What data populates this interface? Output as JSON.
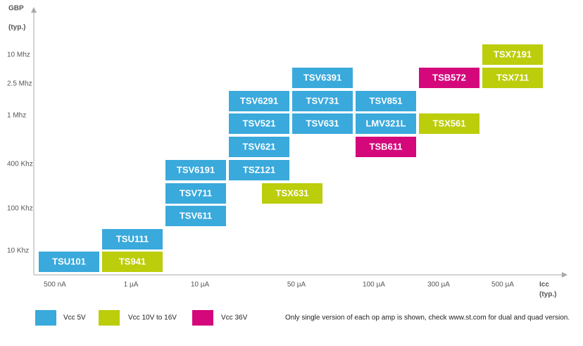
{
  "axes": {
    "y_title": [
      "GBP",
      "(typ.)"
    ],
    "x_title": [
      "Icc",
      "(typ.)"
    ],
    "y_labels": [
      "10 Mhz",
      "2.5 Mhz",
      "1 Mhz",
      "400 Khz",
      "100 Khz",
      "10 Khz"
    ],
    "x_labels": [
      "500 nA",
      "1 µA",
      "10 µA",
      "50 µA",
      "100 µA",
      "300 µA",
      "500 µA"
    ]
  },
  "groups": [
    {
      "name": "Vcc 5V",
      "color": "#3aa9dc",
      "parts": [
        "TSU101",
        "TSU111",
        "TSV611",
        "TSV711",
        "TSV6191",
        "TSZ121",
        "TSV621",
        "TSV521",
        "TSV6291",
        "TSV631",
        "TSV731",
        "TSV6391",
        "LMV321L",
        "TSV851"
      ]
    },
    {
      "name": "Vcc 10V to 16V",
      "color": "#bccd0b",
      "parts": [
        "TS941",
        "TSX631",
        "TSX561",
        "TSX711",
        "TSX7191"
      ]
    },
    {
      "name": "Vcc 36V",
      "color": "#d4077b",
      "parts": [
        "TSB611",
        "TSB572"
      ]
    }
  ],
  "note": "Only single version of each op amp is shown, check www.st.com for dual and quad version."
}
